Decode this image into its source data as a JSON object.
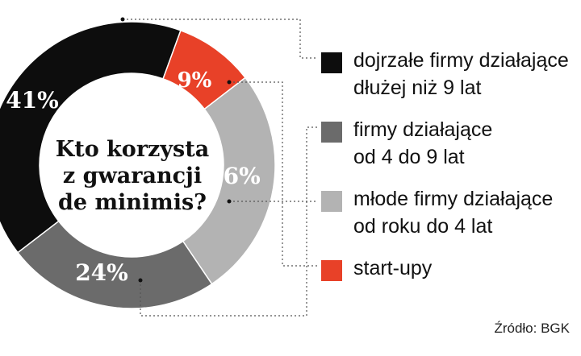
{
  "chart_data": {
    "type": "pie",
    "title": [
      "Kto korzysta",
      "z gwarancji",
      "de minimis?"
    ],
    "slices": [
      {
        "label_lines": [
          "dojrzałe firmy działające",
          "dłużej niż 9 lat"
        ],
        "value": 41,
        "display": "41%",
        "color": "#0d0d0d"
      },
      {
        "label_lines": [
          "firmy działające",
          "od 4 do 9 lat"
        ],
        "value": 24,
        "display": "24%",
        "color": "#6b6b6b"
      },
      {
        "label_lines": [
          "młode firmy działające",
          "od roku do 4 lat"
        ],
        "value": 26,
        "display": "26%",
        "color": "#b3b3b3"
      },
      {
        "label_lines": [
          "start-upy"
        ],
        "value": 9,
        "display": "9%",
        "color": "#e84128"
      }
    ],
    "legend_placement": "right",
    "donut": true
  },
  "source": "Źródło: BGK"
}
